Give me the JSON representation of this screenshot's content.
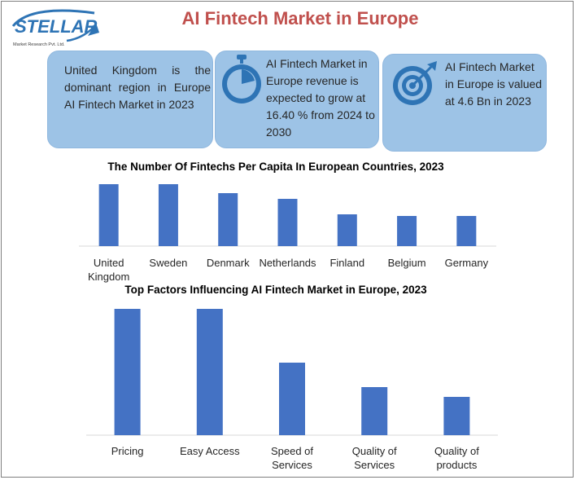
{
  "header": {
    "logo_word": "STELLAR",
    "logo_sub": "Market Research Pvt. Ltd.",
    "title": "AI Fintech Market in Europe"
  },
  "cards": [
    {
      "text": "United Kingdom is the dominant region in Europe AI Fintech Market in 2023",
      "icon": "none"
    },
    {
      "text": "AI Fintech Market in Europe revenue is expected to grow at 16.40 % from 2024 to 2030",
      "icon": "stopwatch-icon"
    },
    {
      "text": "AI Fintech Market in Europe is valued at 4.6 Bn in 2023",
      "icon": "target-icon"
    }
  ],
  "colors": {
    "bar": "#4472c4",
    "card": "#9dc3e6",
    "title": "#c0504d",
    "logo": "#2e74b5"
  },
  "chart_data": [
    {
      "type": "bar",
      "title": "The Number Of Fintechs Per Capita In European Countries, 2023",
      "categories": [
        "United Kingdom",
        "Sweden",
        "Denmark",
        "Netherlands",
        "Finland",
        "Belgium",
        "Germany"
      ],
      "values": [
        76,
        76,
        65,
        58,
        39,
        37,
        37
      ],
      "ylim": [
        0,
        80
      ],
      "grid": false,
      "legend": "none"
    },
    {
      "type": "bar",
      "title": "Top Factors Influencing AI Fintech Market in Europe, 2023",
      "categories": [
        "Pricing",
        "Easy Access",
        "Speed of Services",
        "Quality of Services",
        "Quality of products"
      ],
      "values": [
        155,
        155,
        89,
        59,
        47
      ],
      "ylim": [
        0,
        160
      ],
      "grid": false,
      "legend": "none"
    }
  ]
}
